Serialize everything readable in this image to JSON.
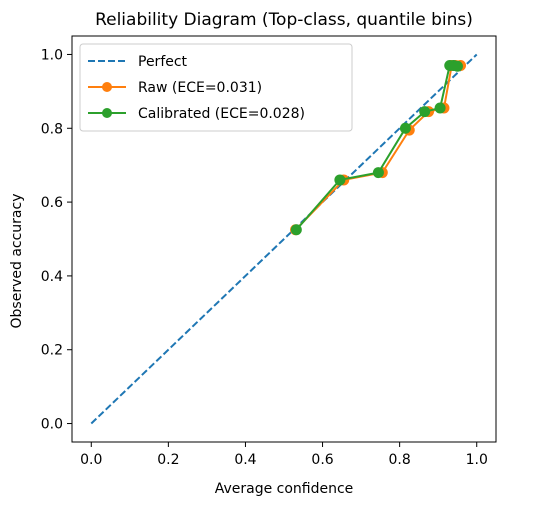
{
  "chart_data": {
    "type": "line",
    "title": "Reliability Diagram (Top-class, quantile bins)",
    "xlabel": "Average confidence",
    "ylabel": "Observed accuracy",
    "xlim": [
      -0.05,
      1.05
    ],
    "ylim": [
      -0.05,
      1.05
    ],
    "xticks": [
      "0.0",
      "0.2",
      "0.4",
      "0.6",
      "0.8",
      "1.0"
    ],
    "yticks": [
      "0.0",
      "0.2",
      "0.4",
      "0.6",
      "0.8",
      "1.0"
    ],
    "grid": false,
    "legend_position": "top-left",
    "series": [
      {
        "name": "Perfect",
        "style": "dashed",
        "color": "#1f77b4",
        "x": [
          0.0,
          1.0
        ],
        "y": [
          0.0,
          1.0
        ]
      },
      {
        "name": "Raw (ECE=0.031)",
        "style": "solid-marker",
        "color": "#ff7f0e",
        "x": [
          0.53,
          0.655,
          0.755,
          0.825,
          0.875,
          0.915,
          0.935,
          0.945,
          0.958
        ],
        "y": [
          0.525,
          0.66,
          0.68,
          0.795,
          0.845,
          0.855,
          0.97,
          0.97,
          0.97
        ]
      },
      {
        "name": "Calibrated (ECE=0.028)",
        "style": "solid-marker",
        "color": "#2ca02c",
        "x": [
          0.532,
          0.645,
          0.745,
          0.815,
          0.865,
          0.905,
          0.93,
          0.94,
          0.95
        ],
        "y": [
          0.525,
          0.66,
          0.68,
          0.8,
          0.845,
          0.855,
          0.97,
          0.97,
          0.968
        ]
      }
    ]
  }
}
